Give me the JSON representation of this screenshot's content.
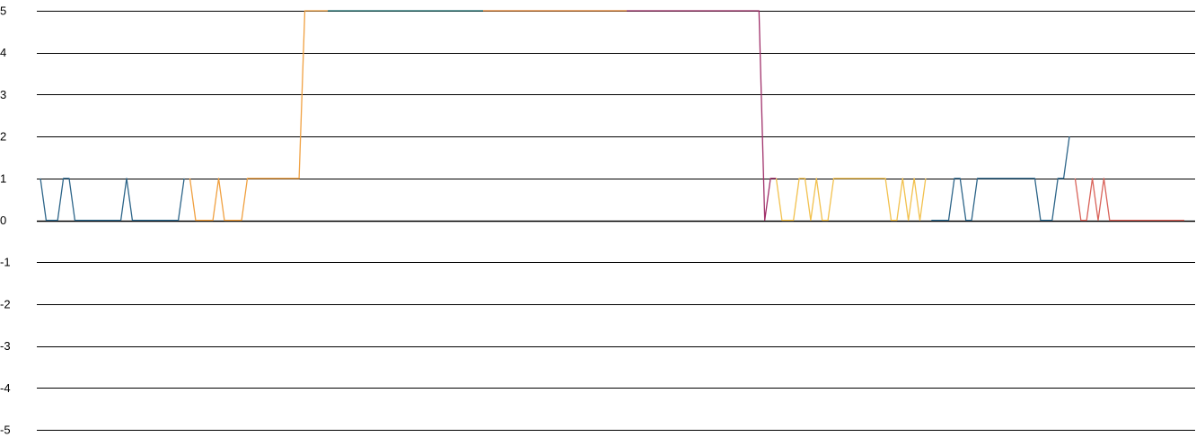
{
  "chart_data": {
    "type": "line",
    "title": "",
    "xlabel": "",
    "ylabel": "",
    "ylim": [
      -5,
      5
    ],
    "yticks": [
      5,
      4,
      3,
      2,
      1,
      0,
      -1,
      -2,
      -3,
      -4,
      -5
    ],
    "ytick_labels": [
      "5",
      "4",
      "3",
      "2",
      "1",
      "0",
      "-1",
      "-2",
      "-3",
      "-4",
      "-5"
    ],
    "grid": true,
    "legend": "none",
    "x_count": 200,
    "series": [
      {
        "color": "#2d6589",
        "points": [
          [
            0,
            1
          ],
          [
            1,
            0
          ],
          [
            2,
            0
          ],
          [
            3,
            0
          ],
          [
            4,
            1
          ],
          [
            5,
            1
          ],
          [
            6,
            0
          ],
          [
            7,
            0
          ],
          [
            8,
            0
          ],
          [
            9,
            0
          ],
          [
            10,
            0
          ],
          [
            11,
            0
          ],
          [
            12,
            0
          ],
          [
            13,
            0
          ],
          [
            14,
            0
          ],
          [
            15,
            1
          ],
          [
            16,
            0
          ],
          [
            17,
            0
          ],
          [
            18,
            0
          ],
          [
            19,
            0
          ],
          [
            20,
            0
          ],
          [
            21,
            0
          ],
          [
            22,
            0
          ],
          [
            23,
            0
          ],
          [
            24,
            0
          ],
          [
            25,
            1
          ]
        ]
      },
      {
        "color": "#f0a040",
        "points": [
          [
            26,
            1
          ],
          [
            27,
            0
          ],
          [
            28,
            0
          ],
          [
            29,
            0
          ],
          [
            30,
            0
          ],
          [
            31,
            1
          ],
          [
            32,
            0
          ],
          [
            33,
            0
          ],
          [
            34,
            0
          ],
          [
            35,
            0
          ],
          [
            36,
            1
          ],
          [
            37,
            1
          ],
          [
            38,
            1
          ],
          [
            39,
            1
          ],
          [
            40,
            1
          ],
          [
            41,
            1
          ],
          [
            42,
            1
          ],
          [
            43,
            1
          ],
          [
            44,
            1
          ],
          [
            45,
            1
          ],
          [
            46,
            5
          ],
          [
            47,
            5
          ],
          [
            48,
            5
          ],
          [
            49,
            5
          ],
          [
            50,
            5
          ]
        ]
      },
      {
        "color": "#1a6e6e",
        "points": [
          [
            50,
            5
          ],
          [
            60,
            5
          ],
          [
            70,
            5
          ],
          [
            77,
            5
          ]
        ]
      },
      {
        "color": "#e07d2a",
        "points": [
          [
            77,
            5
          ],
          [
            85,
            5
          ],
          [
            95,
            5
          ],
          [
            102,
            5
          ]
        ]
      },
      {
        "color": "#a0306a",
        "points": [
          [
            102,
            5
          ],
          [
            110,
            5
          ],
          [
            117,
            5
          ],
          [
            125,
            5
          ],
          [
            126,
            0
          ],
          [
            127,
            1
          ],
          [
            128,
            1
          ]
        ]
      },
      {
        "color": "#f2c14e",
        "points": [
          [
            128,
            1
          ],
          [
            129,
            0
          ],
          [
            130,
            0
          ],
          [
            131,
            0
          ],
          [
            132,
            1
          ],
          [
            133,
            1
          ],
          [
            134,
            0
          ],
          [
            135,
            1
          ],
          [
            136,
            0
          ],
          [
            137,
            0
          ],
          [
            138,
            1
          ],
          [
            139,
            1
          ],
          [
            140,
            1
          ],
          [
            141,
            1
          ],
          [
            142,
            1
          ],
          [
            143,
            1
          ],
          [
            144,
            1
          ],
          [
            145,
            1
          ],
          [
            146,
            1
          ],
          [
            147,
            1
          ],
          [
            148,
            0
          ],
          [
            149,
            0
          ],
          [
            150,
            1
          ],
          [
            151,
            0
          ],
          [
            152,
            1
          ],
          [
            153,
            0
          ],
          [
            154,
            1
          ]
        ]
      },
      {
        "color": "#2d6589",
        "points": [
          [
            155,
            0
          ],
          [
            156,
            0
          ],
          [
            157,
            0
          ],
          [
            158,
            0
          ],
          [
            159,
            1
          ],
          [
            160,
            1
          ],
          [
            161,
            0
          ],
          [
            162,
            0
          ],
          [
            163,
            1
          ],
          [
            164,
            1
          ],
          [
            165,
            1
          ],
          [
            166,
            1
          ],
          [
            167,
            1
          ],
          [
            168,
            1
          ],
          [
            169,
            1
          ],
          [
            170,
            1
          ],
          [
            171,
            1
          ],
          [
            172,
            1
          ],
          [
            173,
            1
          ],
          [
            174,
            0
          ],
          [
            175,
            0
          ],
          [
            176,
            0
          ],
          [
            177,
            1
          ],
          [
            178,
            1
          ],
          [
            179,
            2
          ]
        ]
      },
      {
        "color": "#d9635a",
        "points": [
          [
            180,
            1
          ],
          [
            181,
            0
          ],
          [
            182,
            0
          ],
          [
            183,
            1
          ],
          [
            184,
            0
          ],
          [
            185,
            1
          ],
          [
            186,
            0
          ],
          [
            187,
            0
          ],
          [
            188,
            0
          ],
          [
            189,
            0
          ],
          [
            190,
            0
          ],
          [
            191,
            0
          ],
          [
            192,
            0
          ],
          [
            193,
            0
          ],
          [
            194,
            0
          ],
          [
            195,
            0
          ],
          [
            196,
            0
          ],
          [
            197,
            0
          ],
          [
            198,
            0
          ],
          [
            199,
            0
          ]
        ]
      }
    ]
  }
}
